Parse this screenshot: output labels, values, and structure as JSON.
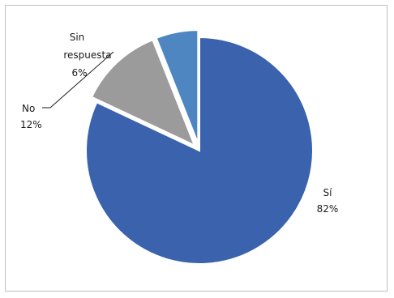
{
  "chart_data": {
    "type": "pie",
    "title": "",
    "slices": [
      {
        "name": "Sí",
        "value": 82,
        "label": "82%",
        "color": "#3a62ad",
        "exploded": false
      },
      {
        "name": "No",
        "value": 12,
        "label": "12%",
        "color": "#9b9b9b",
        "exploded": true
      },
      {
        "name": "Sin respuesta",
        "value": 6,
        "label": "6%",
        "color": "#4d86c1",
        "exploded": true
      }
    ],
    "legend": "none",
    "labels": {
      "si": {
        "name": "Sí",
        "pct": "82%"
      },
      "no": {
        "name": "No",
        "pct": "12%"
      },
      "sin": {
        "name_line1": "Sin",
        "name_line2": "respuesta",
        "pct": "6%"
      }
    }
  }
}
